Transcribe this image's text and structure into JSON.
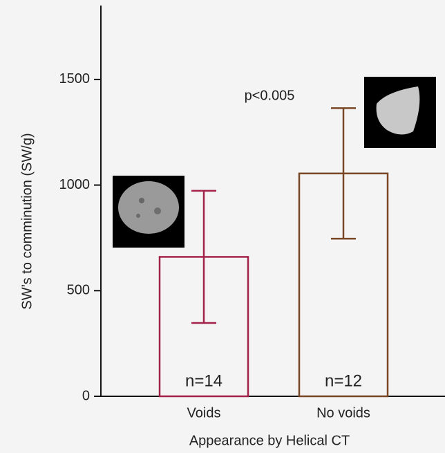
{
  "chart_data": {
    "type": "bar",
    "annotation": "p<0.005",
    "x_label": "Appearance by Helical CT",
    "y_label": "SW’s to comminution (SW/g)",
    "categories": [
      "Voids",
      "No voids"
    ],
    "values": [
      660,
      1055
    ],
    "errors": [
      313,
      309
    ],
    "colors": [
      "#a3224a",
      "#7a4724"
    ],
    "n_labels": [
      "n=14",
      "n=12"
    ],
    "ylim": [
      0,
      1850
    ],
    "yticks": [
      0,
      500,
      1000,
      1500
    ]
  }
}
